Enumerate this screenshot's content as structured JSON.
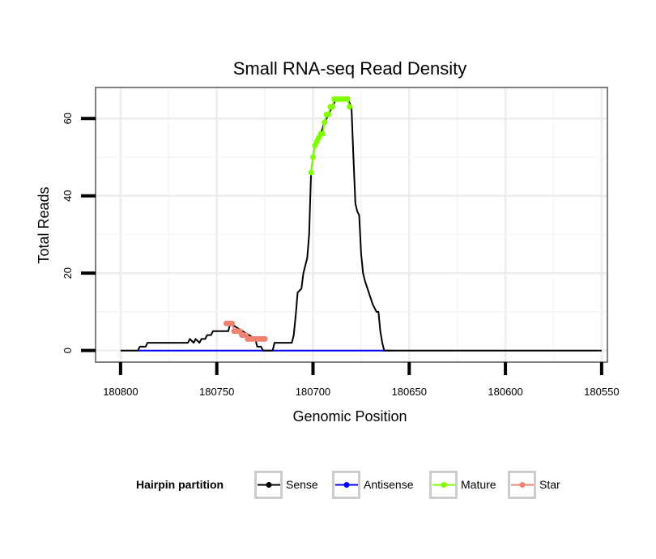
{
  "chart_data": {
    "type": "line",
    "title": "Small RNA-seq Read Density",
    "xlabel": "Genomic Position",
    "ylabel": "Total Reads",
    "xlim": [
      180813,
      180547
    ],
    "ylim": [
      -3,
      68
    ],
    "x_reversed": true,
    "grid": true,
    "x_ticks": [
      180800,
      180750,
      180700,
      180650,
      180600,
      180550
    ],
    "x_tick_labels": [
      "180800",
      "180750",
      "180700",
      "180650",
      "180600",
      "180550"
    ],
    "y_ticks": [
      0,
      20,
      40,
      60
    ],
    "y_tick_labels": [
      "0",
      "20",
      "40",
      "60"
    ],
    "legend": {
      "title": "Hairpin partition",
      "position": "bottom",
      "entries": [
        "Sense",
        "Antisense",
        "Mature",
        "Star"
      ]
    },
    "series": [
      {
        "name": "Sense",
        "color": "#000000",
        "markers": false,
        "x": [
          180800,
          180791,
          180790,
          180787,
          180786,
          180765,
          180764,
          180762,
          180761,
          180759,
          180758,
          180756,
          180755,
          180753,
          180752,
          180744,
          180743,
          180730,
          180729,
          180727,
          180726,
          180721,
          180720,
          180716,
          180715,
          180712,
          180711,
          180710,
          180709,
          180708,
          180706,
          180705,
          180704,
          180703,
          180702,
          180701,
          180700,
          180699,
          180698,
          180696,
          180694,
          180692,
          180690,
          180688,
          180686,
          180684,
          180682,
          180681,
          180680,
          180679,
          180678,
          180677,
          180676,
          180675,
          180674,
          180673,
          180671,
          180669,
          180667,
          180666,
          180665,
          180664,
          180663,
          180662,
          180661,
          180660,
          180659,
          180550
        ],
        "y": [
          0,
          0,
          1,
          1,
          2,
          2,
          3,
          2,
          3,
          2,
          3,
          3,
          4,
          4,
          5,
          5,
          7,
          3,
          1,
          1,
          0,
          0,
          2,
          2,
          2,
          2,
          2,
          4,
          9,
          15,
          16,
          20,
          22,
          24,
          30,
          46,
          50,
          53,
          55,
          56,
          59,
          61,
          63,
          65,
          65,
          65,
          65,
          64,
          63,
          50,
          38,
          36,
          35,
          25,
          20,
          18,
          15,
          12,
          10,
          10,
          5,
          2,
          0,
          0,
          0,
          0,
          0,
          0
        ]
      },
      {
        "name": "Antisense",
        "color": "#0000ff",
        "markers": false,
        "x": [
          180791,
          180659
        ],
        "y": [
          0,
          0
        ]
      },
      {
        "name": "Mature",
        "color": "#7fff00",
        "markers": true,
        "x": [
          180701,
          180700,
          180699,
          180698,
          180697,
          180696,
          180695,
          180694,
          180693,
          180692,
          180691,
          180690,
          180689,
          180688,
          180687,
          180686,
          180685,
          180684,
          180683,
          180682,
          180681
        ],
        "y": [
          46,
          50,
          53,
          54,
          55,
          56,
          56,
          59,
          61,
          61,
          63,
          63,
          65,
          65,
          65,
          65,
          65,
          65,
          65,
          65,
          63
        ]
      },
      {
        "name": "Star",
        "color": "#f08070",
        "markers": true,
        "x": [
          180745,
          180744,
          180743,
          180742,
          180741,
          180740,
          180739,
          180738,
          180737,
          180736,
          180735,
          180734,
          180733,
          180732,
          180731,
          180730,
          180729,
          180728,
          180727,
          180726,
          180725
        ],
        "y": [
          7,
          7,
          7,
          7,
          5,
          5,
          5,
          5,
          4,
          4,
          4,
          3,
          3,
          3,
          3,
          3,
          3,
          3,
          3,
          3,
          3
        ]
      }
    ]
  }
}
